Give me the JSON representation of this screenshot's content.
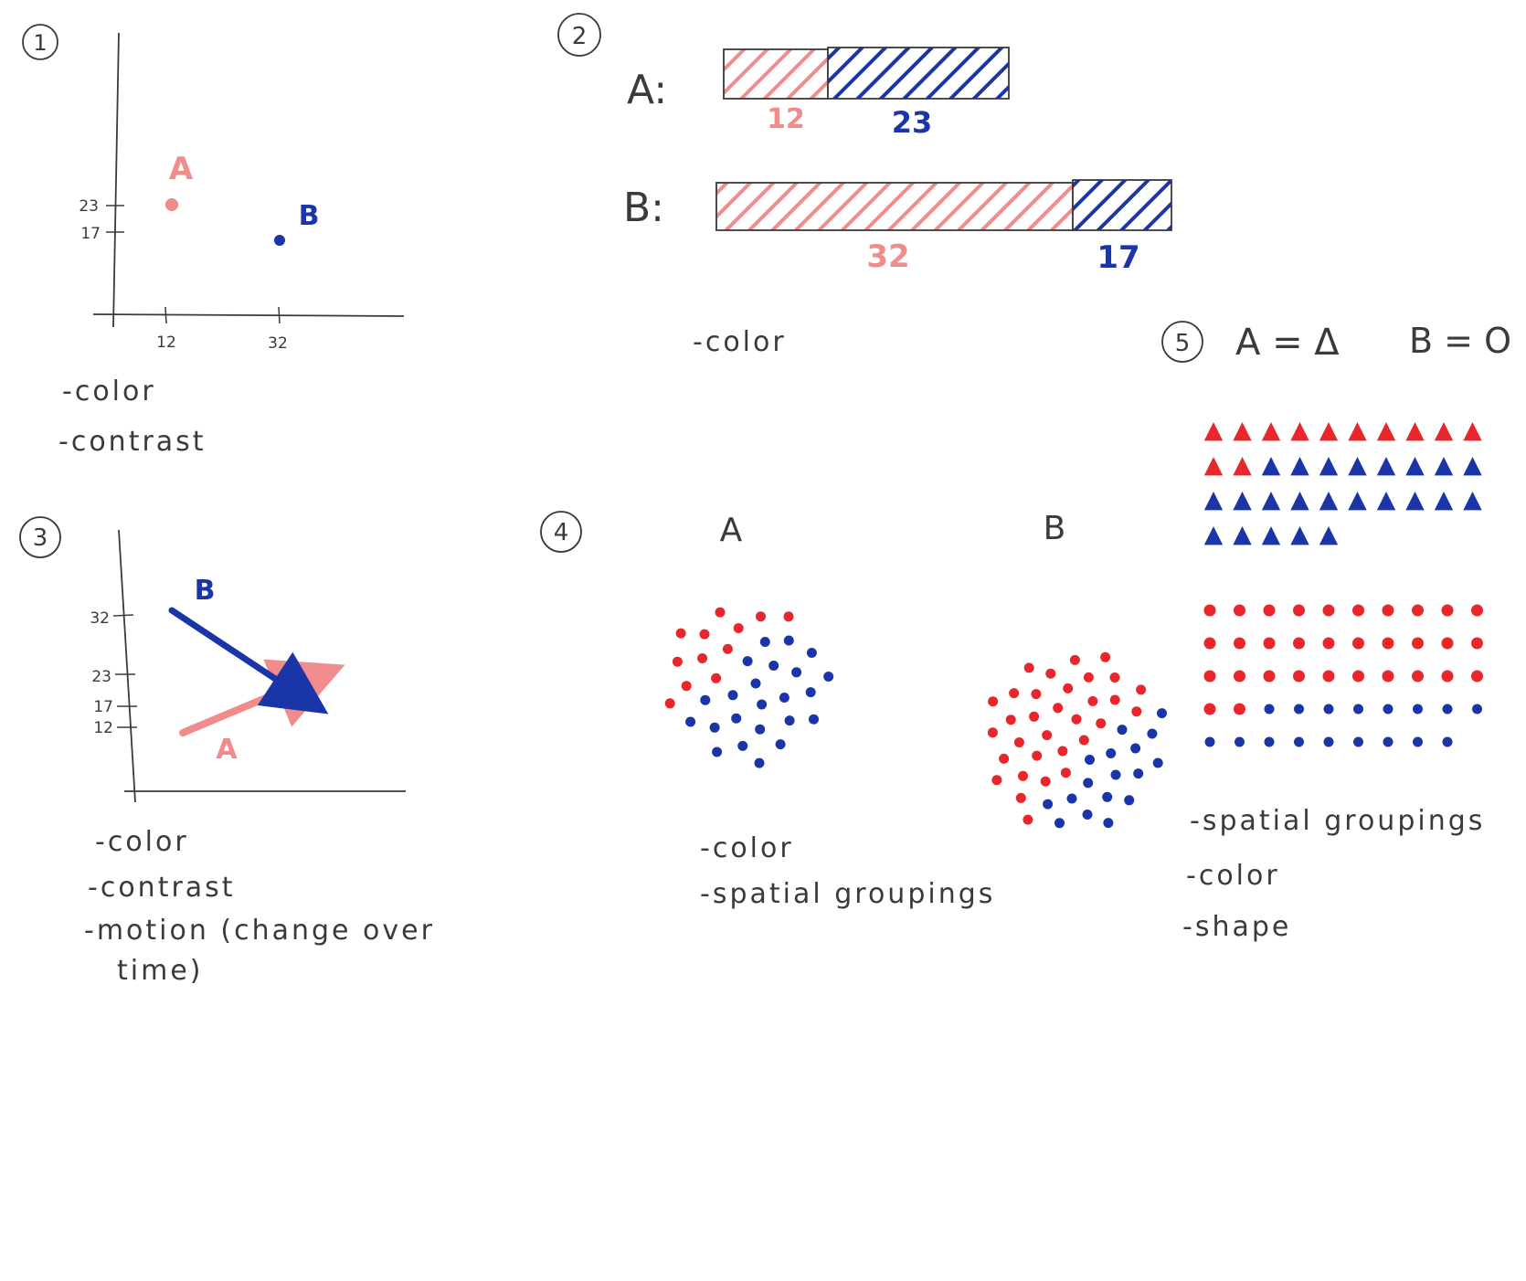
{
  "colors": {
    "pink": "#f08c8c",
    "red": "#e8262c",
    "blue": "#1a35a8",
    "ink": "#3a3a3a"
  },
  "panels": {
    "p1": {
      "number": "1",
      "chart_data": {
        "type": "scatter",
        "points": [
          {
            "label": "A",
            "x": 12,
            "y": 23,
            "color": "pink"
          },
          {
            "label": "B",
            "x": 32,
            "y": 17,
            "color": "blue"
          }
        ],
        "x_ticks": [
          "12",
          "32"
        ],
        "y_ticks": [
          "23",
          "17"
        ],
        "xlim": [
          0,
          50
        ],
        "ylim": [
          0,
          40
        ]
      },
      "notes": [
        "-color",
        "-contrast"
      ]
    },
    "p2": {
      "number": "2",
      "chart_data": {
        "type": "bar",
        "orientation": "horizontal",
        "stacked": true,
        "categories": [
          "A:",
          "B:"
        ],
        "series": [
          {
            "values": [
              12,
              32
            ],
            "color": "pink"
          },
          {
            "values": [
              23,
              17
            ],
            "color": "blue"
          }
        ],
        "value_labels": [
          [
            "12",
            "23"
          ],
          [
            "32",
            "17"
          ]
        ]
      },
      "notes": [
        "-color"
      ]
    },
    "p3": {
      "number": "3",
      "chart_data": {
        "type": "line",
        "series": [
          {
            "label": "A",
            "color": "pink",
            "y": [
              12,
              23
            ]
          },
          {
            "label": "B",
            "color": "blue",
            "y": [
              32,
              17
            ]
          }
        ],
        "y_ticks": [
          "32",
          "23",
          "17",
          "12"
        ],
        "ylim": [
          0,
          40
        ]
      },
      "notes": [
        "-color",
        "-contrast",
        "-motion (change over",
        "time)"
      ]
    },
    "p4": {
      "number": "4",
      "groups": [
        {
          "label": "A",
          "red": 12,
          "blue": 23
        },
        {
          "label": "B",
          "red": 32,
          "blue": 17
        }
      ],
      "notes": [
        "-color",
        "-spatial groupings"
      ]
    },
    "p5": {
      "number": "5",
      "legend_a": "A = Δ",
      "legend_b": "B = O",
      "triangles": {
        "red": 12,
        "blue": 23,
        "per_row": 10
      },
      "dots": {
        "red": 32,
        "blue": 17,
        "per_row": 10
      },
      "notes": [
        "-spatial groupings",
        "-color",
        "-shape"
      ]
    }
  }
}
